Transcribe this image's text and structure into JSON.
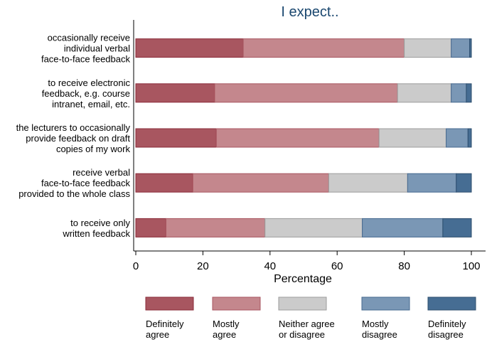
{
  "chart_data": {
    "type": "bar",
    "orientation": "horizontal",
    "stacked": true,
    "title": "I expect..",
    "xlabel": "Percentage",
    "ylabel": "",
    "xlim": [
      0,
      100
    ],
    "xticks": [
      0,
      20,
      40,
      60,
      80,
      100
    ],
    "grid": false,
    "legend_position": "bottom",
    "categories": [
      [
        "occasionally receive",
        "individual verbal",
        "face-to-face feedback"
      ],
      [
        "to receive electronic",
        "feedback, e.g. course",
        "intranet, email, etc."
      ],
      [
        "the lecturers to occasionally",
        "provide feedback on draft",
        "copies of my work"
      ],
      [
        "receive verbal",
        "face-to-face feedback",
        "provided to the whole class"
      ],
      [
        "to receive only",
        "written feedback"
      ]
    ],
    "series": [
      {
        "name": [
          "Definitely",
          "agree"
        ],
        "color": "#a85660",
        "stroke": "#8a2b39",
        "values": [
          32,
          23.5,
          24,
          17,
          9
        ]
      },
      {
        "name": [
          "Mostly",
          "agree"
        ],
        "color": "#c4878d",
        "stroke": "#a85660",
        "values": [
          48,
          54.5,
          48.5,
          40.5,
          29.5
        ]
      },
      {
        "name": [
          "Neither agree",
          "or disagree"
        ],
        "color": "#cbcbcb",
        "stroke": "#9c9c9c",
        "values": [
          14,
          16,
          20,
          23.5,
          29
        ]
      },
      {
        "name": [
          "Mostly",
          "disagree"
        ],
        "color": "#7a97b5",
        "stroke": "#45688f",
        "values": [
          5.5,
          4.5,
          6.5,
          14.5,
          24
        ]
      },
      {
        "name": [
          "Definitely",
          "disagree"
        ],
        "color": "#466d93",
        "stroke": "#2d4e6e",
        "values": [
          0.5,
          1.5,
          1,
          4.5,
          8.5
        ]
      }
    ]
  }
}
